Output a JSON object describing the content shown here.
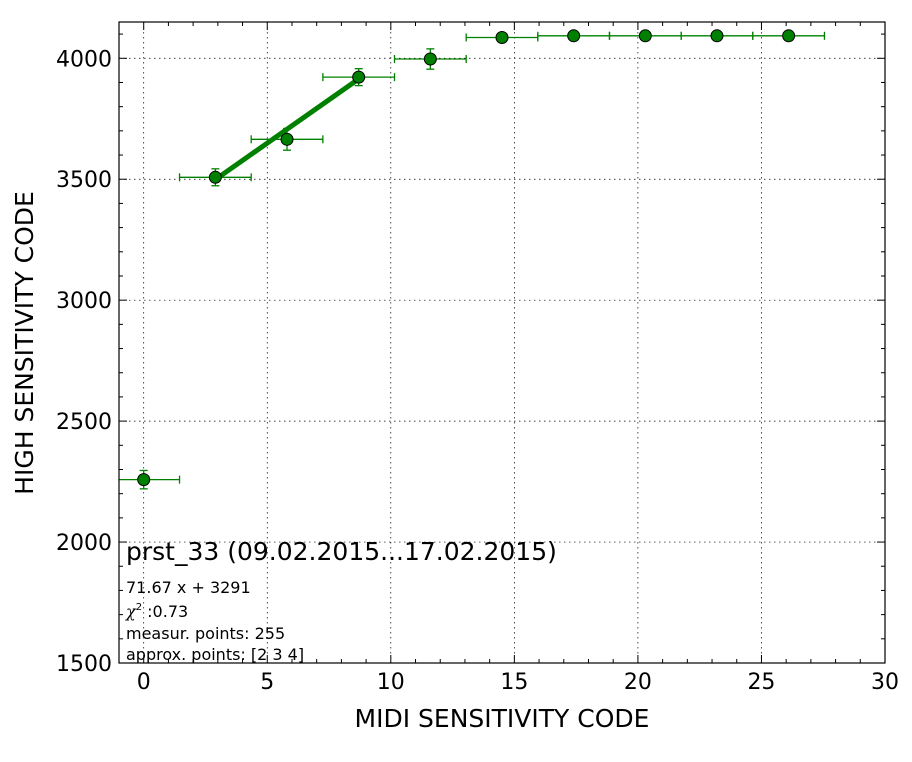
{
  "chart_data": {
    "type": "scatter",
    "title": "prst_33 (09.02.2015...17.02.2015)",
    "xlabel": "MIDI SENSITIVITY CODE",
    "ylabel": "HIGH SENSITIVITY CODE",
    "xlim": [
      -1,
      30
    ],
    "ylim": [
      1500,
      4150
    ],
    "xticks": [
      0,
      5,
      10,
      15,
      20,
      25,
      30
    ],
    "yticks": [
      1500,
      2000,
      2500,
      3000,
      3500,
      4000
    ],
    "grid": true,
    "marker_color": "#008000",
    "fit_color": "#008000",
    "points": [
      {
        "x": 0.0,
        "y": 2258,
        "xerr": 1.45,
        "yerr": 38
      },
      {
        "x": 2.9,
        "y": 3508,
        "xerr": 1.45,
        "yerr": 35
      },
      {
        "x": 5.8,
        "y": 3665,
        "xerr": 1.45,
        "yerr": 45
      },
      {
        "x": 8.7,
        "y": 3922,
        "xerr": 1.45,
        "yerr": 35
      },
      {
        "x": 11.6,
        "y": 3997,
        "xerr": 1.45,
        "yerr": 42
      },
      {
        "x": 14.5,
        "y": 4086,
        "xerr": 1.45,
        "yerr": 8
      },
      {
        "x": 17.4,
        "y": 4093,
        "xerr": 1.45,
        "yerr": 4
      },
      {
        "x": 20.3,
        "y": 4093,
        "xerr": 1.45,
        "yerr": 4
      },
      {
        "x": 23.2,
        "y": 4093,
        "xerr": 1.45,
        "yerr": 4
      },
      {
        "x": 26.1,
        "y": 4093,
        "xerr": 1.45,
        "yerr": 4
      }
    ],
    "fit": {
      "slope": 71.67,
      "intercept": 3291,
      "x_range": [
        2.9,
        8.7
      ]
    },
    "annotations": {
      "equation": "71.67 x + 3291",
      "chi2_symbol": "χ",
      "chi2_sup": "2",
      "chi2_value": " :0.73",
      "measur_points": "measur. points: 255",
      "approx_points": "approx. points: [2 3 4]"
    }
  }
}
